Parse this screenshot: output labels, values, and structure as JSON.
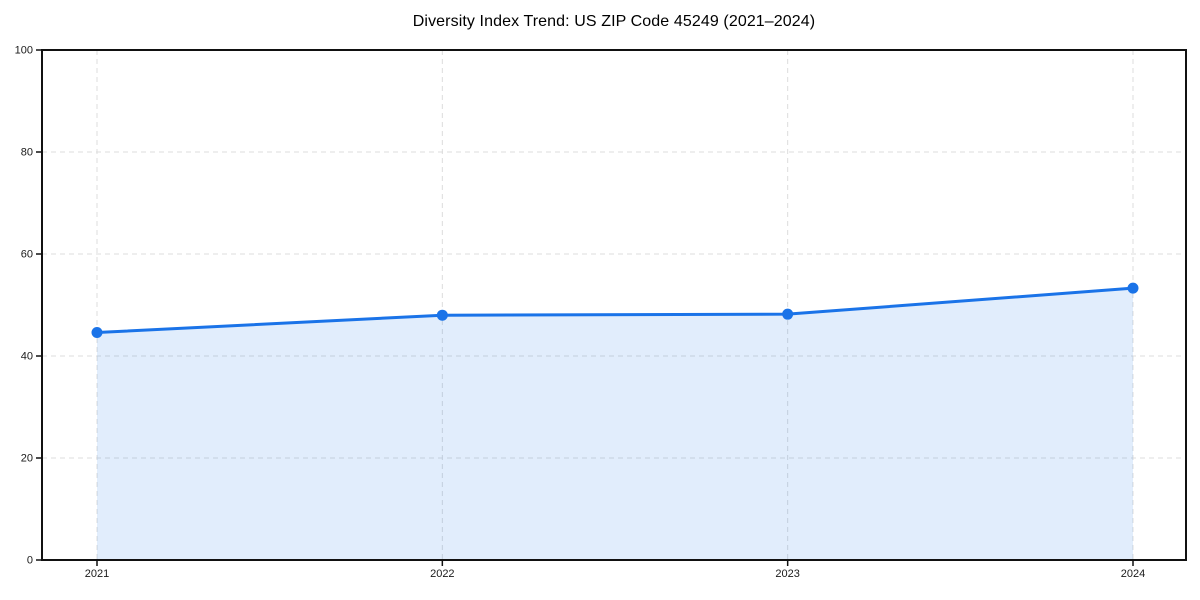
{
  "chart_data": {
    "type": "area",
    "title": "Diversity Index Trend: US ZIP Code 45249 (2021–2024)",
    "x": [
      "2021",
      "2022",
      "2023",
      "2024"
    ],
    "series": [
      {
        "name": "Diversity Index",
        "values": [
          44.6,
          48.0,
          48.2,
          53.3
        ]
      }
    ],
    "xlabel": "",
    "ylabel": "",
    "ylim": [
      0,
      100
    ],
    "yticks": [
      0,
      20,
      40,
      60,
      80,
      100
    ],
    "grid": "dashed-both-axes",
    "legend": "none",
    "colors": {
      "line": "#1a73e8",
      "marker": "#1a73e8",
      "fill": "rgba(26,115,232,0.13)",
      "grid": "#dcdcdc",
      "spine": "#111111",
      "tick_label": "#1a1a1a",
      "title": "#000000"
    }
  }
}
